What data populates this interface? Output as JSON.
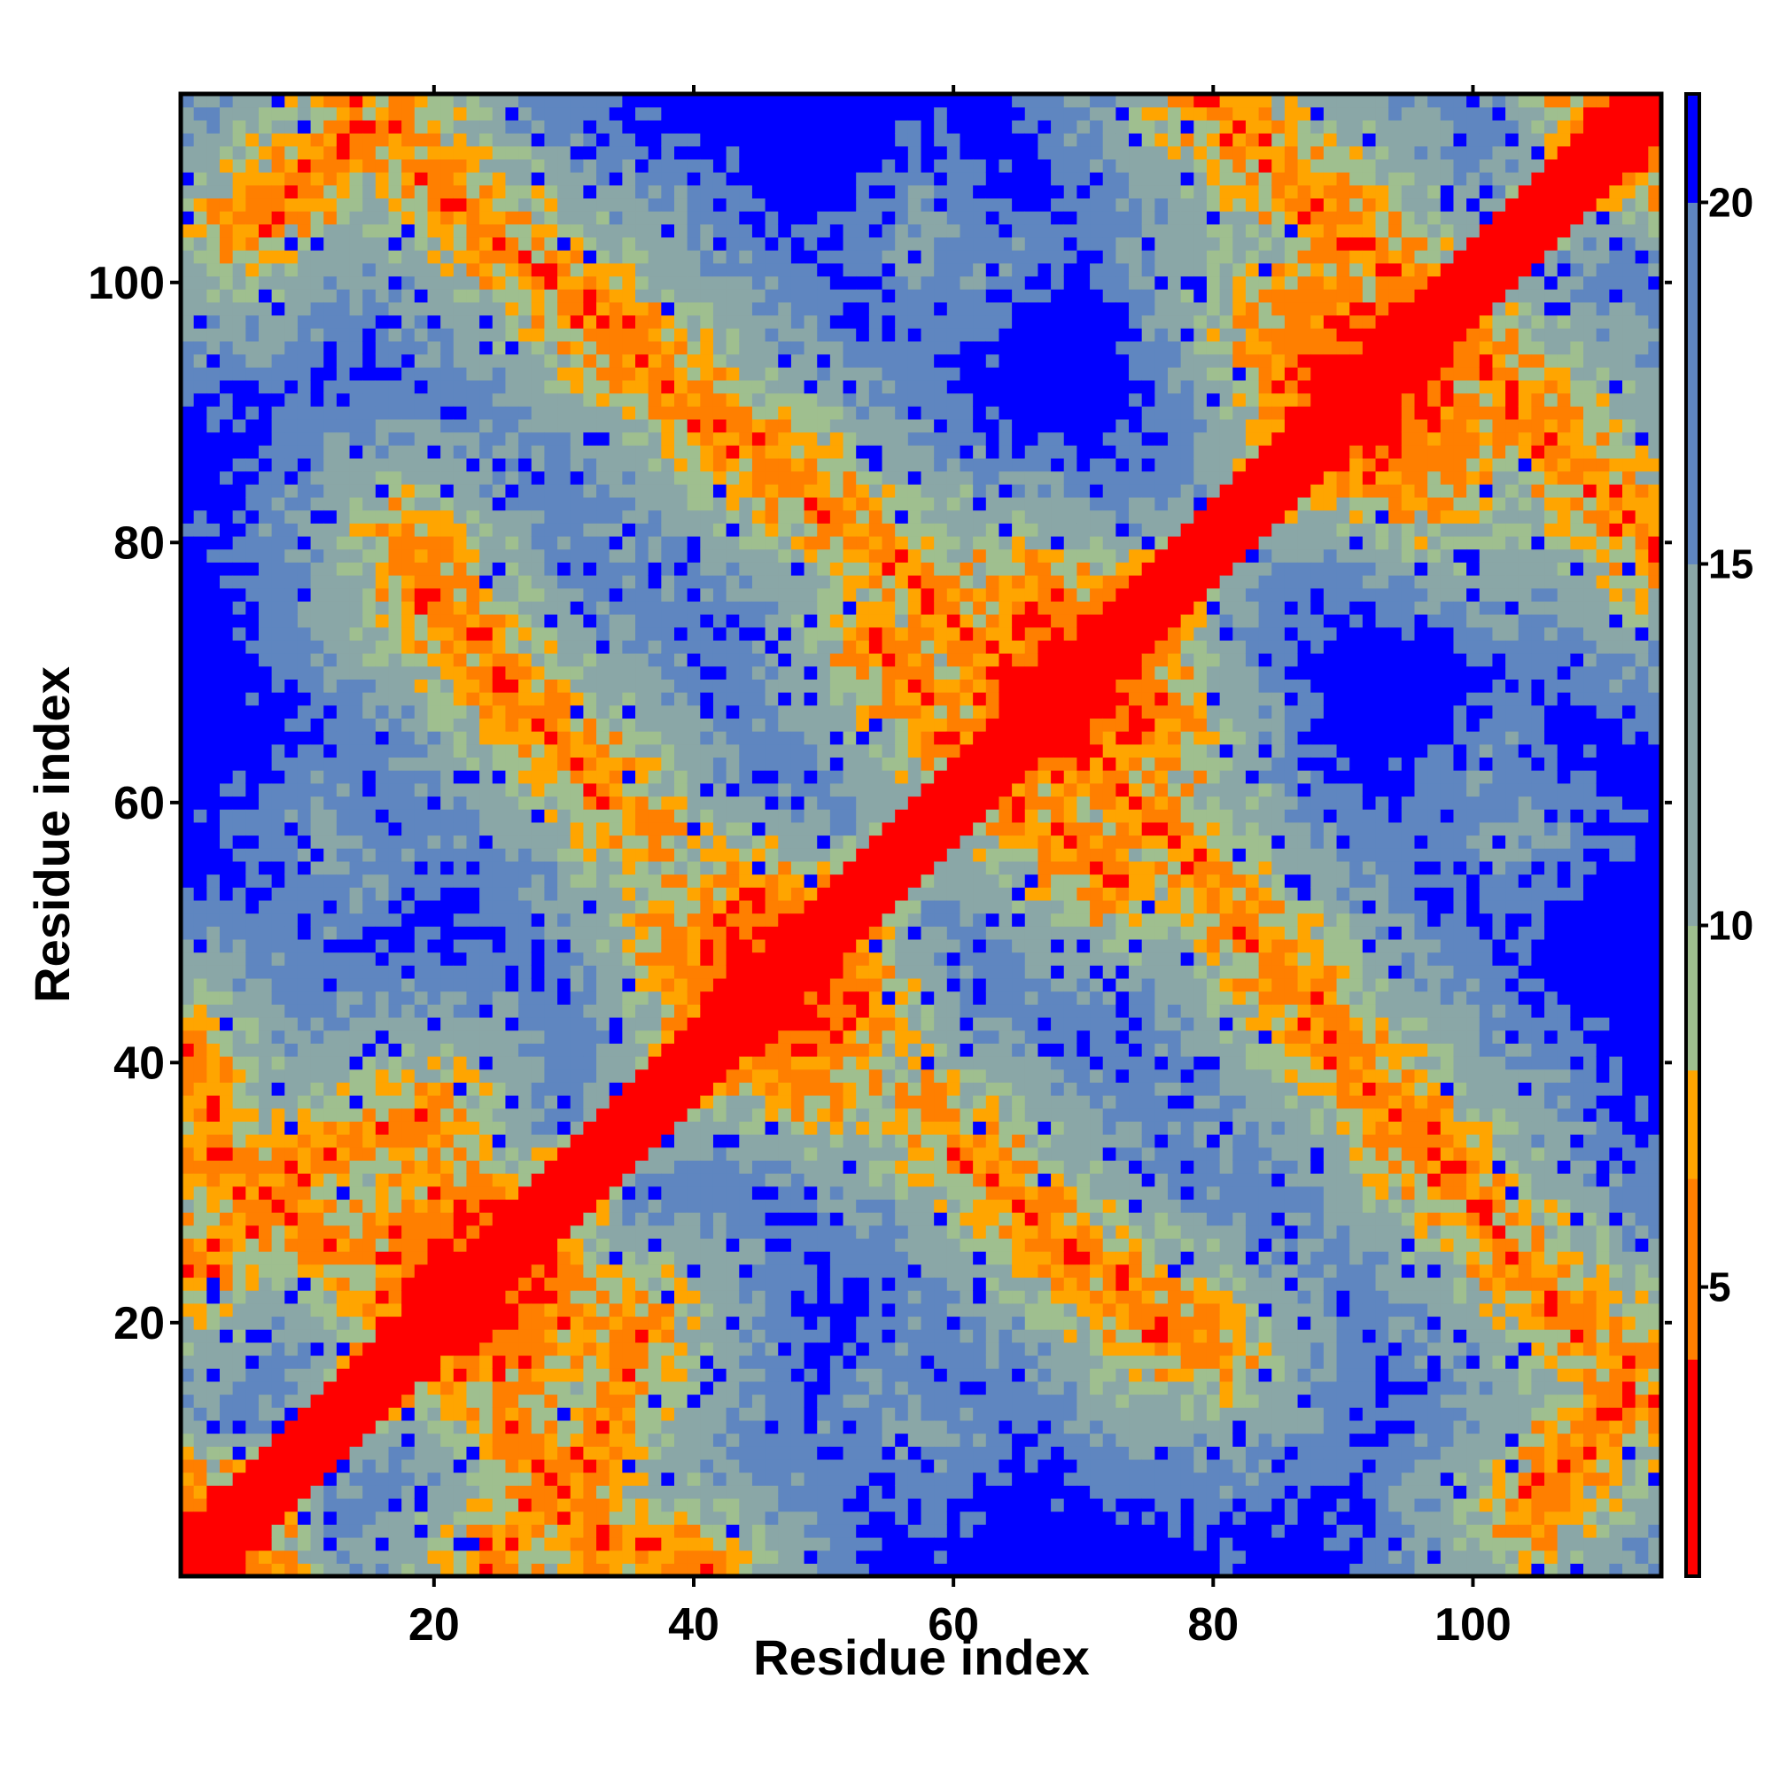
{
  "chart_data": {
    "type": "heatmap",
    "title": "",
    "xlabel": "Residue index",
    "ylabel": "Residue index",
    "n_residues": 114,
    "xlim": [
      0.5,
      114.5
    ],
    "ylim": [
      0.5,
      114.5
    ],
    "x_ticks": [
      20,
      40,
      60,
      80,
      100
    ],
    "y_ticks": [
      20,
      40,
      60,
      80,
      100
    ],
    "colorbar": {
      "range": [
        1,
        21.5
      ],
      "ticks": [
        5,
        10,
        15,
        20
      ],
      "orientation": "vertical",
      "position": "right",
      "segments": [
        {
          "from": 1,
          "to": 4,
          "color": "#ff0000"
        },
        {
          "from": 4,
          "to": 6.5,
          "color": "#ff7f00"
        },
        {
          "from": 6.5,
          "to": 8,
          "color": "#ffa500"
        },
        {
          "from": 8,
          "to": 10,
          "color": "#9fbf8f"
        },
        {
          "from": 10,
          "to": 15,
          "color": "#8aa7a7"
        },
        {
          "from": 15,
          "to": 20,
          "color": "#5f86c0"
        },
        {
          "from": 20,
          "to": 21.5,
          "color": "#0000ff"
        }
      ]
    },
    "value_description": "Pairwise residue distance; symmetric about the diagonal; main diagonal near 0 (red); values >= 20 saturated blue",
    "contact_bands": [
      {
        "points": [
          [
            1,
            24
          ],
          [
            12,
            33
          ],
          [
            20,
            36
          ]
        ]
      },
      {
        "points": [
          [
            1,
            34
          ],
          [
            8,
            30
          ],
          [
            12,
            26
          ]
        ]
      },
      {
        "points": [
          [
            13,
            114
          ],
          [
            30,
            99
          ],
          [
            45,
            86
          ]
        ]
      },
      {
        "points": [
          [
            38,
            92
          ],
          [
            55,
            79
          ],
          [
            72,
            64
          ]
        ]
      },
      {
        "points": [
          [
            54,
            72
          ],
          [
            62,
            62
          ],
          [
            72,
            54
          ]
        ]
      },
      {
        "points": [
          [
            19,
            76
          ],
          [
            28,
            67
          ],
          [
            36,
            58
          ]
        ]
      },
      {
        "points": [
          [
            27,
            7
          ],
          [
            35,
            3
          ],
          [
            40,
            1
          ]
        ]
      },
      {
        "points": [
          [
            80,
            114
          ],
          [
            90,
            103
          ]
        ]
      },
      {
        "points": [
          [
            90,
            106
          ],
          [
            104,
            90
          ],
          [
            114,
            79
          ]
        ]
      },
      {
        "points": [
          [
            82,
            51
          ],
          [
            92,
            39
          ],
          [
            98,
            33
          ]
        ]
      },
      {
        "points": [
          [
            64,
            30
          ],
          [
            74,
            22
          ],
          [
            80,
            18
          ]
        ]
      },
      {
        "points": [
          [
            104,
            5
          ],
          [
            114,
            18
          ]
        ]
      }
    ]
  }
}
